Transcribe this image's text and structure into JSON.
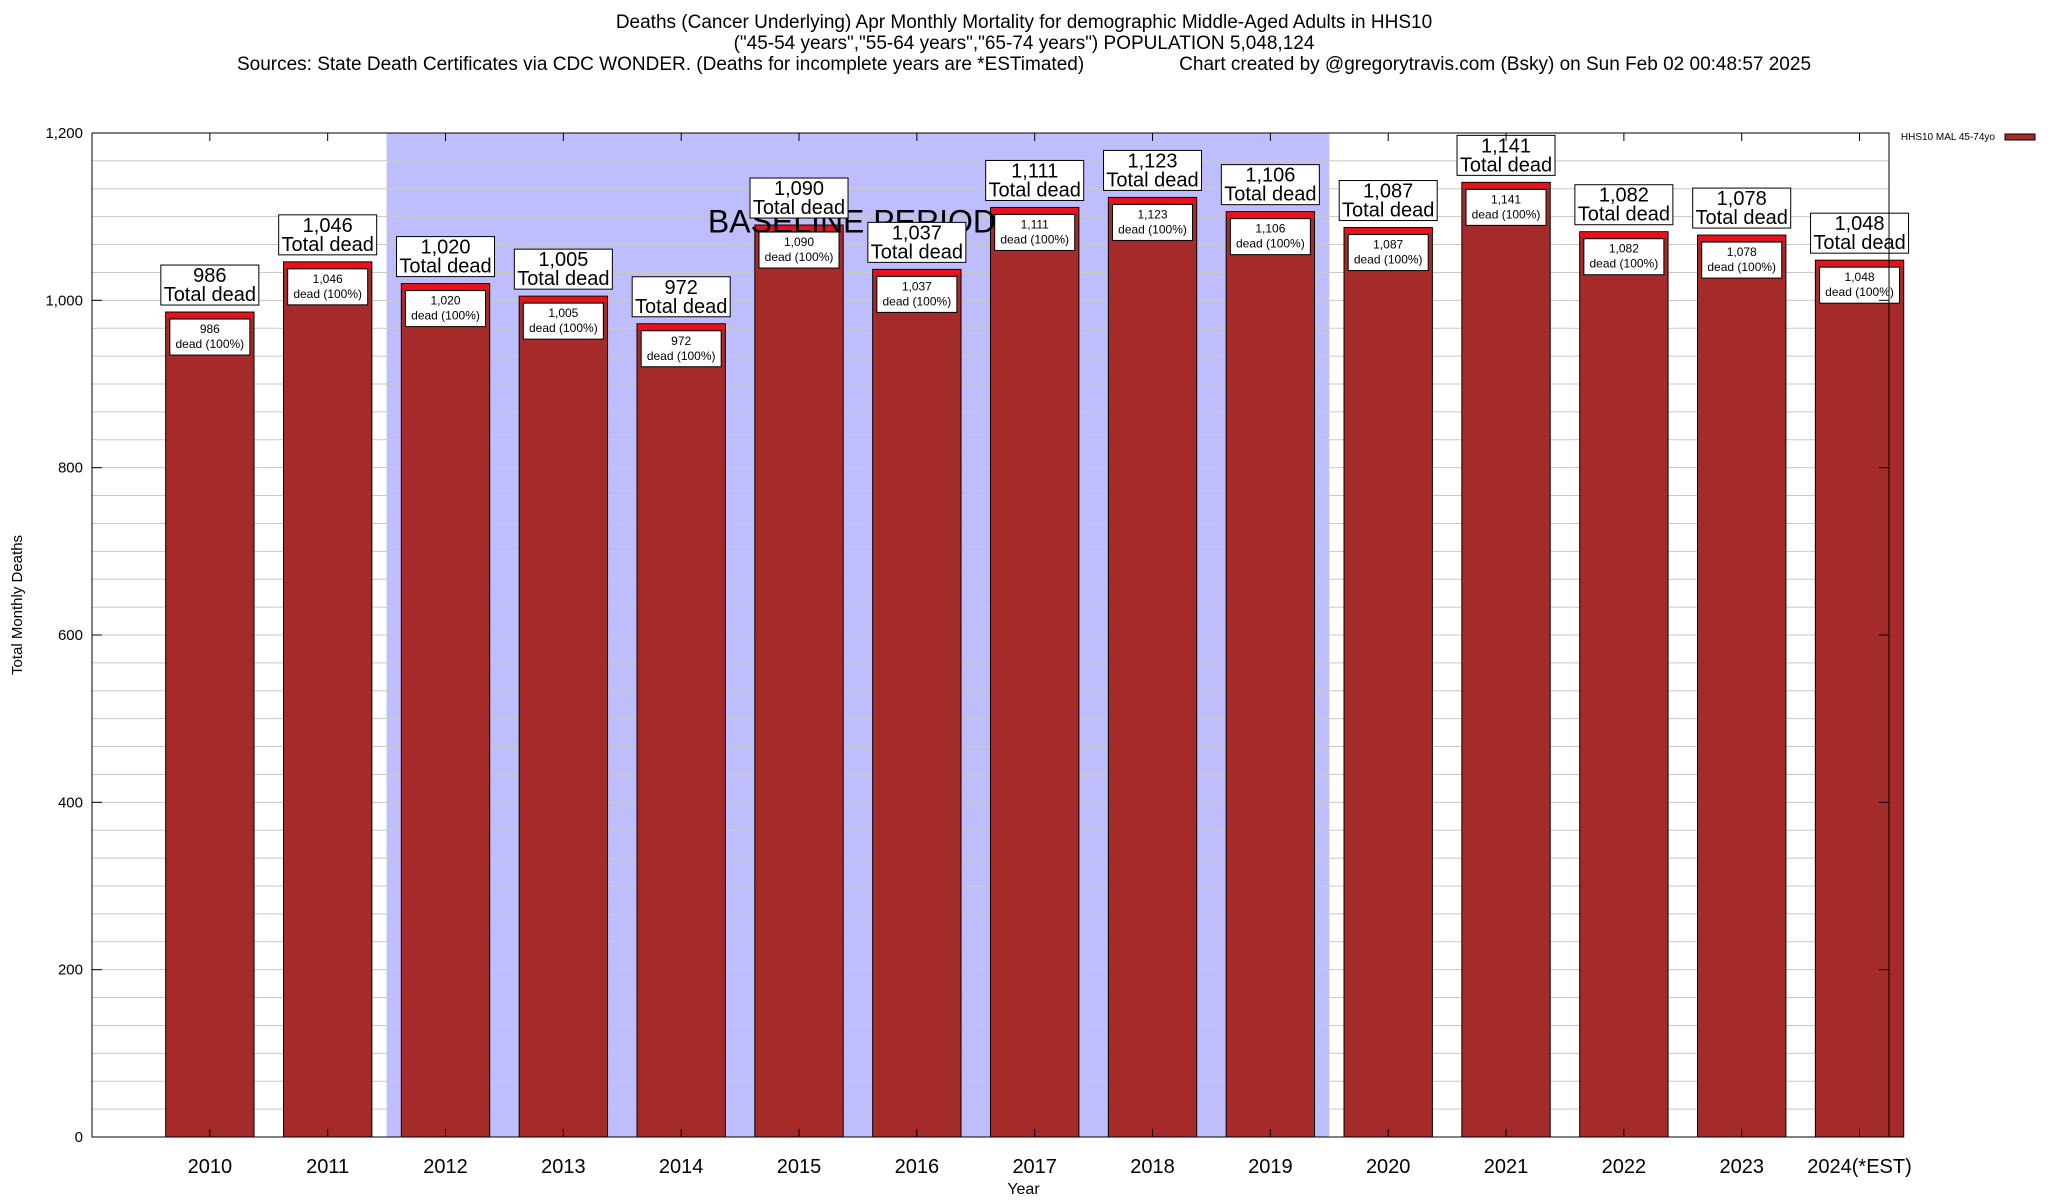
{
  "title_lines": [
    "Deaths (Cancer Underlying) Apr Monthly Mortality for demographic Middle-Aged Adults in HHS10",
    "(\"45-54 years\",\"55-64 years\",\"65-74 years\") POPULATION 5,048,124"
  ],
  "sources": "Sources: State Death Certificates via CDC WONDER. (Deaths for incomplete years are *ESTimated)",
  "credit": "Chart created by @gregorytravis.com (Bsky) on Sun Feb 02 00:48:57 2025",
  "colors": {
    "bar": "#A52A2A",
    "baseline": "#BEBEFF",
    "top_band": "#E8121A"
  },
  "chart_data": {
    "type": "bar",
    "title": "Deaths (Cancer Underlying) Apr Monthly Mortality for demographic Middle-Aged Adults in HHS10",
    "xlabel": "Year",
    "ylabel": "Total Monthly Deaths",
    "ylim": [
      0,
      1200
    ],
    "yticks": [
      0,
      200,
      400,
      600,
      800,
      1000,
      1200
    ],
    "ytick_labels": [
      "0",
      "200",
      "400",
      "600",
      "800",
      "1,000",
      "1,200"
    ],
    "grid": true,
    "legend_position": "top-right",
    "categories": [
      "2010",
      "2011",
      "2012",
      "2013",
      "2014",
      "2015",
      "2016",
      "2017",
      "2018",
      "2019",
      "2020",
      "2021",
      "2022",
      "2023",
      "2024(*EST)"
    ],
    "series": [
      {
        "name": "HHS10 MAL 45-74yo",
        "values": [
          986,
          1046,
          1020,
          1005,
          972,
          1090,
          1037,
          1111,
          1123,
          1106,
          1087,
          1141,
          1082,
          1078,
          1048
        ]
      }
    ],
    "value_labels": [
      "986",
      "1,046",
      "1,020",
      "1,005",
      "972",
      "1,090",
      "1,037",
      "1,111",
      "1,123",
      "1,106",
      "1,087",
      "1,141",
      "1,082",
      "1,078",
      "1,048"
    ],
    "total_label_suffix": "Total dead",
    "inner_label_suffix": "dead (100%)",
    "baseline_period": {
      "label": "BASELINE PERIOD",
      "start": "2012",
      "end": "2019"
    }
  }
}
